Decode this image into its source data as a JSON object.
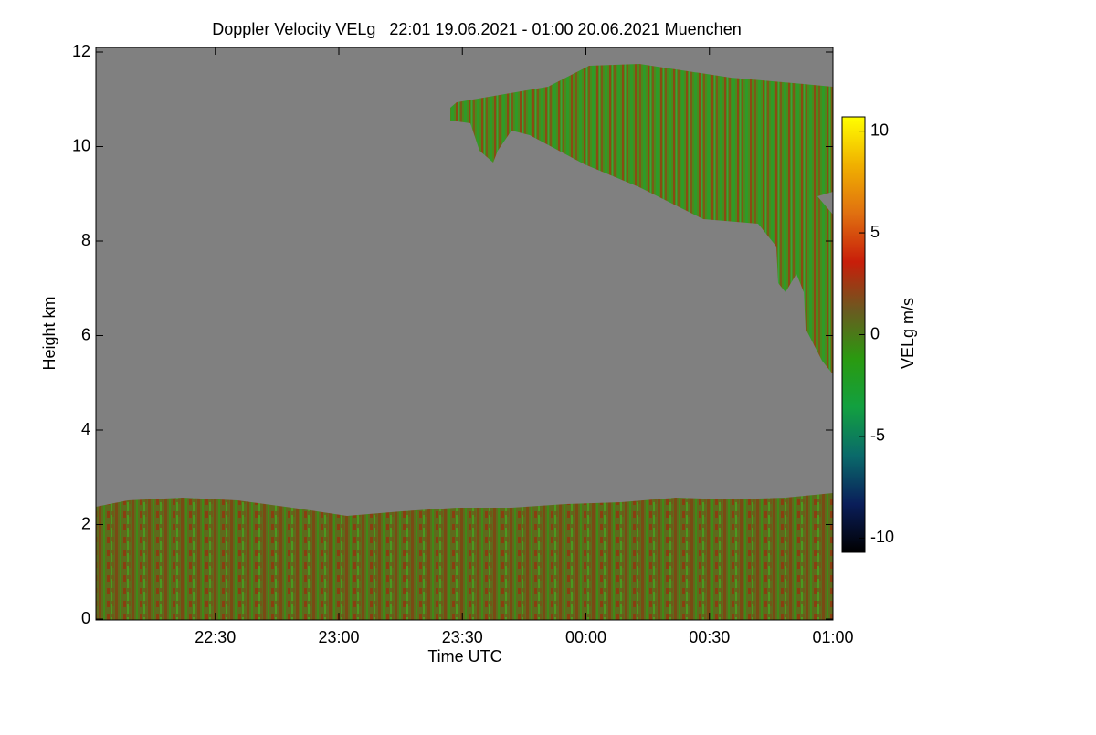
{
  "chart_data": {
    "type": "heatmap",
    "title": "Doppler Velocity VELg   22:01 19.06.2021 - 01:00 20.06.2021 Muenchen",
    "x_label": "Time UTC",
    "y_label": "Height km",
    "colorbar_label": "VELg m/s",
    "xlim": [
      1321,
      1500
    ],
    "xticks": [
      {
        "value": 1350,
        "label": "22:30"
      },
      {
        "value": 1380,
        "label": "23:00"
      },
      {
        "value": 1410,
        "label": "23:30"
      },
      {
        "value": 1440,
        "label": "00:00"
      },
      {
        "value": 1470,
        "label": "00:30"
      },
      {
        "value": 1500,
        "label": "01:00"
      }
    ],
    "ylim": [
      0,
      12
    ],
    "yticks": [
      0,
      2,
      4,
      6,
      8,
      10,
      12
    ],
    "clim": [
      -10.7,
      10.7
    ],
    "cticks": [
      -10,
      -5,
      0,
      5,
      10
    ],
    "colormap": [
      "#000000",
      "#0a1e5a",
      "#0a6a6a",
      "#12a040",
      "#2a9a10",
      "#6a5a20",
      "#c81e0a",
      "#e07010",
      "#f0b000",
      "#ffff00"
    ],
    "background_color": "#808080"
  }
}
